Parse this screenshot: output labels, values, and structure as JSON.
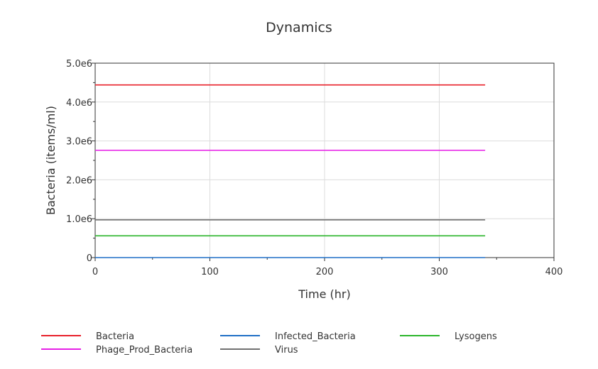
{
  "chart_data": {
    "type": "line",
    "title": "Dynamics",
    "xlabel": "Time (hr)",
    "ylabel": "Bacteria (items/ml)",
    "xlim": [
      0,
      400
    ],
    "ylim": [
      0,
      5000000
    ],
    "x_ticks": [
      0,
      100,
      200,
      300,
      400
    ],
    "x_tick_labels": [
      "0",
      "100",
      "200",
      "300",
      "400"
    ],
    "y_ticks": [
      0,
      1000000,
      2000000,
      3000000,
      4000000,
      5000000
    ],
    "y_tick_labels": [
      "0",
      "1.0e6",
      "2.0e6",
      "3.0e6",
      "4.0e6",
      "5.0e6"
    ],
    "grid": true,
    "legend_position": "bottom",
    "series": [
      {
        "name": "Bacteria",
        "color": "#e8202a",
        "x": [
          0,
          340
        ],
        "y": [
          4440000,
          4440000
        ]
      },
      {
        "name": "Phage_Prod_Bacteria",
        "color": "#e61ee6",
        "x": [
          0,
          340
        ],
        "y": [
          2760000,
          2760000
        ]
      },
      {
        "name": "Infected_Bacteria",
        "color": "#1f6fc5",
        "x": [
          0,
          340
        ],
        "y": [
          0,
          0
        ]
      },
      {
        "name": "Virus",
        "color": "#707070",
        "x": [
          0,
          340
        ],
        "y": [
          970000,
          970000
        ]
      },
      {
        "name": "Lysogens",
        "color": "#2bb52b",
        "x": [
          0,
          340
        ],
        "y": [
          560000,
          560000
        ]
      }
    ]
  }
}
